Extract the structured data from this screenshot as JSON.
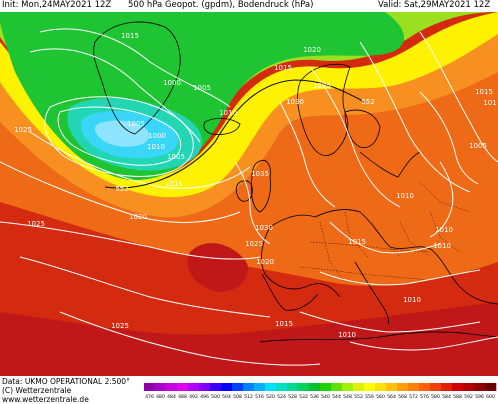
{
  "header": {
    "init": "Init: Mon,24MAY2021 12Z",
    "title": "500 hPa Geopot. (gpdm), Bodendruck (hPa)",
    "valid": "Valid: Sat,29MAY2021 12Z"
  },
  "footer": {
    "data_line": "Data: UKMO OPERATIONAL 2.500°",
    "copyright": "(C) Wetterzentrale",
    "url": "www.wetterzentrale.de"
  },
  "colorbar": {
    "ticks": [
      "476",
      "480",
      "484",
      "488",
      "492",
      "496",
      "500",
      "504",
      "508",
      "512",
      "516",
      "520",
      "524",
      "528",
      "532",
      "536",
      "540",
      "544",
      "548",
      "552",
      "556",
      "560",
      "564",
      "568",
      "572",
      "576",
      "580",
      "584",
      "588",
      "592",
      "596",
      "600"
    ],
    "colors": [
      "#8b00a8",
      "#a800c8",
      "#c800e0",
      "#e000f0",
      "#b000ff",
      "#8000ff",
      "#4000ff",
      "#0000ff",
      "#0040ff",
      "#0080ff",
      "#00b0ff",
      "#00e0ff",
      "#00e0c0",
      "#00d890",
      "#00d060",
      "#00c030",
      "#20d000",
      "#60e000",
      "#a0f000",
      "#e0f000",
      "#ffff00",
      "#ffe000",
      "#ffc000",
      "#ffa000",
      "#ff8000",
      "#ff6000",
      "#f04000",
      "#e02000",
      "#d00000",
      "#b00000",
      "#900000",
      "#700000"
    ]
  },
  "map": {
    "isobar_labels": [
      "1015",
      "1020",
      "1025",
      "1015",
      "1000",
      "1005",
      "1025",
      "1030",
      "1010",
      "1005",
      "1010",
      "1000",
      "1005",
      "1015",
      "1035",
      "1020",
      "1025",
      "1030",
      "1025",
      "1020",
      "1010",
      "1015",
      "1010",
      "1010",
      "1015",
      "1010",
      "1025",
      "1015",
      "1005",
      "101",
      "1010"
    ],
    "geopot_labels": [
      "552",
      "552"
    ],
    "colors": {
      "red": "#d42a10",
      "deep_red": "#c01818",
      "orange": "#ee6a16",
      "light_orange": "#f79020",
      "yellow": "#fff200",
      "yellow_green": "#9be020",
      "green": "#1fc432",
      "teal": "#22d6b4",
      "cyan": "#3ad6f8",
      "light_blue": "#8ee4ff"
    }
  }
}
